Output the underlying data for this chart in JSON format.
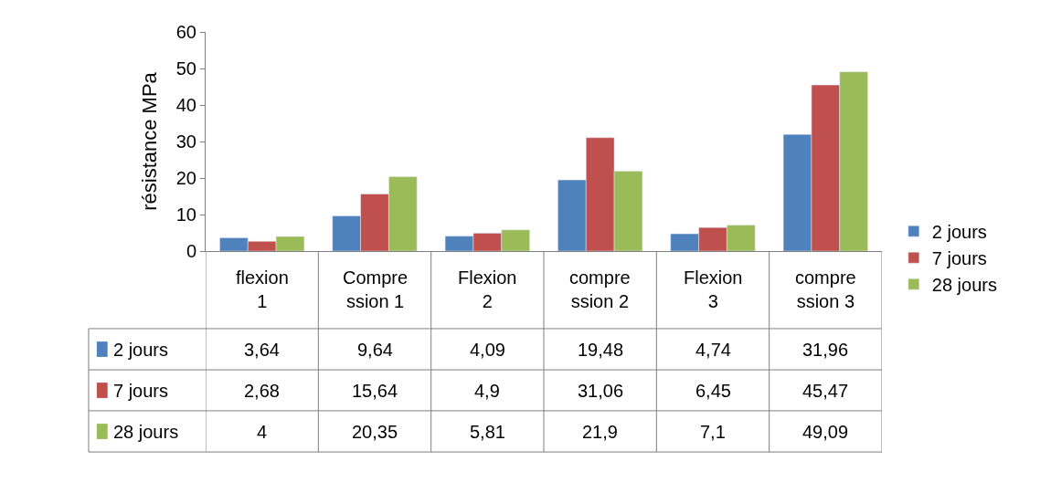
{
  "chart_data": {
    "type": "bar",
    "ylabel": "résistance MPa",
    "categories": [
      "flexion 1",
      "Compression 1",
      "Flexion 2",
      "compression 2",
      "Flexion 3",
      "compression 3"
    ],
    "series": [
      {
        "name": "2 jours",
        "color": "#4f81bd",
        "values": [
          3.64,
          9.64,
          4.09,
          19.48,
          4.74,
          31.96
        ],
        "value_labels": [
          "3,64",
          "9,64",
          "4,09",
          "19,48",
          "4,74",
          "31,96"
        ]
      },
      {
        "name": "7 jours",
        "color": "#c0504d",
        "values": [
          2.68,
          15.64,
          4.9,
          31.06,
          6.45,
          45.47
        ],
        "value_labels": [
          "2,68",
          "15,64",
          "4,9",
          "31,06",
          "6,45",
          "45,47"
        ]
      },
      {
        "name": "28 jours",
        "color": "#9bbb59",
        "values": [
          4,
          20.35,
          5.81,
          21.9,
          7.1,
          49.09
        ],
        "value_labels": [
          "4",
          "20,35",
          "5,81",
          "21,9",
          "7,1",
          "49,09"
        ]
      }
    ],
    "ylim": [
      0,
      60
    ],
    "yticks": [
      0,
      10,
      20,
      30,
      40,
      50,
      60
    ],
    "legend": "right",
    "tick_labels": "y"
  }
}
